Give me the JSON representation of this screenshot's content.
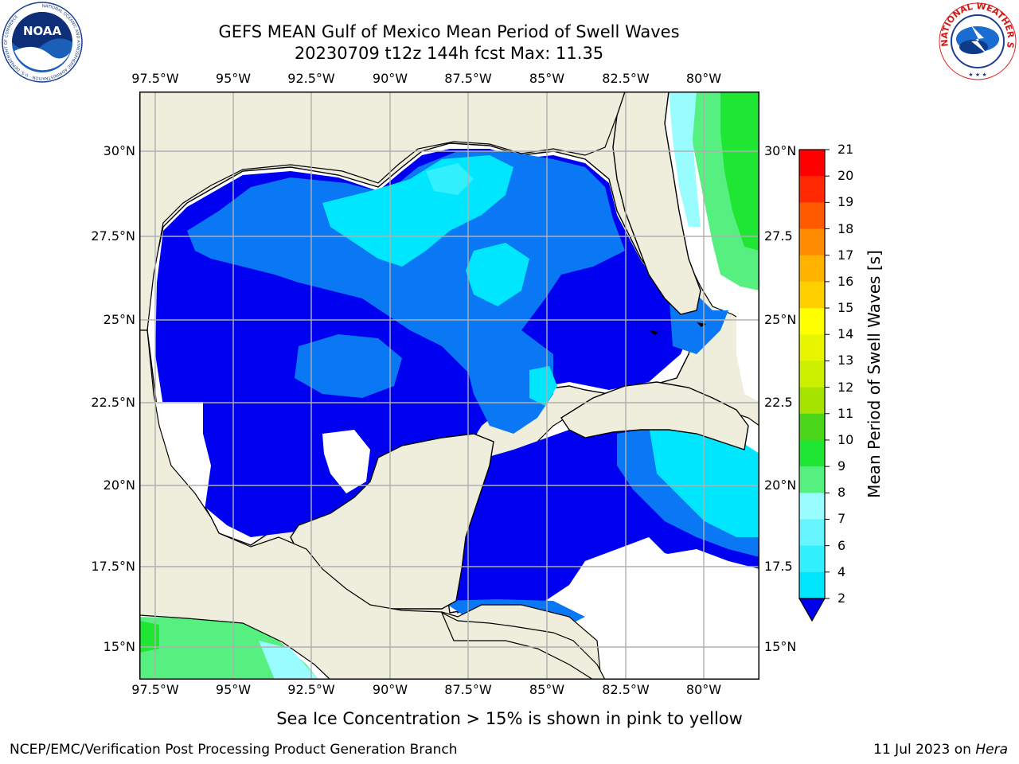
{
  "header": {
    "title": "GEFS MEAN Gulf of Mexico Mean Period of Swell Waves",
    "subtitle": "20230709 t12z 144h fcst   Max: 11.35"
  },
  "logos": {
    "noaa_text": "NOAA",
    "noaa_ring": "NATIONAL OCEANIC AND ATMOSPHERIC ADMINISTRATION · U.S. DEPARTMENT OF COMMERCE",
    "nws_ring": "NATIONAL WEATHER SERVICE"
  },
  "map": {
    "lon_labels": [
      "97.5°W",
      "95°W",
      "92.5°W",
      "90°W",
      "87.5°W",
      "85°W",
      "82.5°W",
      "80°W"
    ],
    "lat_labels_left": [
      "30°N",
      "27.5°N",
      "25°N",
      "22.5°N",
      "20°N",
      "17.5°N",
      "15°N"
    ],
    "lat_labels_right": [
      "30°N",
      "27.5",
      "25°N",
      "22.5",
      "20°N",
      "17.5",
      "15°N"
    ],
    "lon_range": [
      -98,
      -78.2
    ],
    "lat_range": [
      14,
      31.9
    ],
    "land_color": "#efeddc",
    "grid_color": "#b0b0b0"
  },
  "colorbar": {
    "label": "Mean Period of Swell Waves [s]",
    "ticks": [
      "2",
      "4",
      "6",
      "7",
      "8",
      "9",
      "10",
      "11",
      "12",
      "13",
      "14",
      "15",
      "16",
      "17",
      "18",
      "19",
      "20",
      "21"
    ],
    "colors": [
      "#0000f0",
      "#0a78f5",
      "#00e6ff",
      "#33f0ff",
      "#66f5ff",
      "#99fcff",
      "#55f080",
      "#1ee632",
      "#4cd619",
      "#a6e300",
      "#ccf000",
      "#e8f500",
      "#ffff00",
      "#ffd000",
      "#ffb300",
      "#ff8c00",
      "#ff5a00",
      "#ff2800",
      "#ff0000"
    ]
  },
  "footer": {
    "note": "Sea Ice Concentration > 15% is shown in pink to yellow",
    "credit_left": "NCEP/EMC/Verification Post Processing Product Generation Branch",
    "credit_date": "11 Jul 2023 on ",
    "credit_host": "Hera"
  }
}
